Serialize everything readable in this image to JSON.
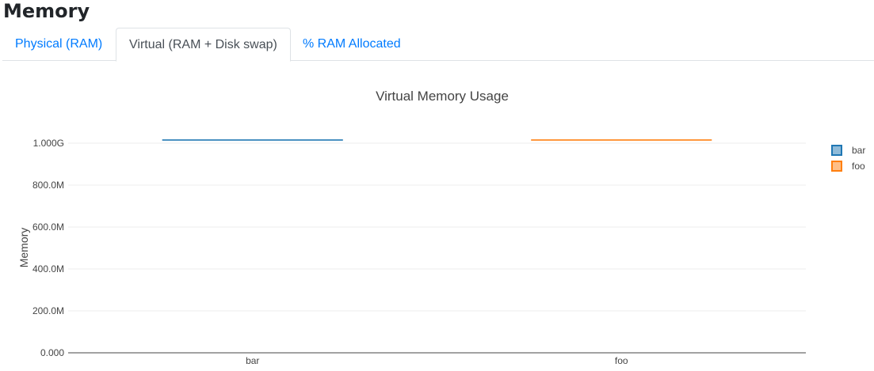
{
  "page": {
    "title": "Memory"
  },
  "tabs": [
    {
      "label": "Physical (RAM)",
      "active": false
    },
    {
      "label": "Virtual (RAM + Disk swap)",
      "active": true
    },
    {
      "label": "% RAM Allocated",
      "active": false
    }
  ],
  "chart_data": {
    "type": "box",
    "title": "Virtual Memory Usage",
    "xlabel": "",
    "ylabel": "Memory",
    "categories": [
      "bar",
      "foo"
    ],
    "series": [
      {
        "name": "bar",
        "category": "bar",
        "value": 1015000000,
        "color": "#1f77b4"
      },
      {
        "name": "foo",
        "category": "foo",
        "value": 1015000000,
        "color": "#ff7f0e"
      }
    ],
    "yticks": [
      {
        "v": 0,
        "label": "0.000"
      },
      {
        "v": 200000000,
        "label": "200.0M"
      },
      {
        "v": 400000000,
        "label": "400.0M"
      },
      {
        "v": 600000000,
        "label": "600.0M"
      },
      {
        "v": 800000000,
        "label": "800.0M"
      },
      {
        "v": 1000000000,
        "label": "1.000G"
      }
    ],
    "ylim": [
      0,
      1050000000
    ],
    "grid": true,
    "legend": "right"
  }
}
